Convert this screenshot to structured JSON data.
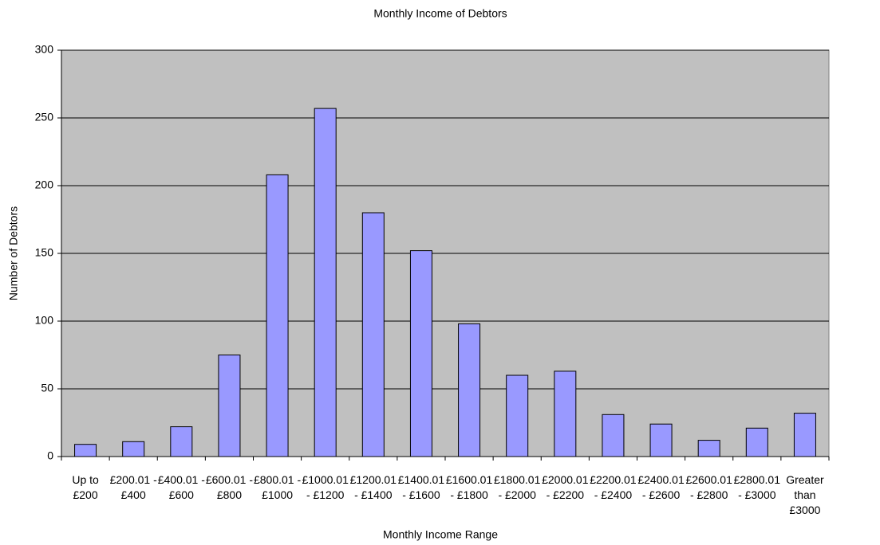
{
  "chart_data": {
    "type": "bar",
    "title": "Monthly Income of Debtors",
    "x_label": "Monthly Income Range",
    "y_label": "Number of Debtors",
    "categories": [
      "Up to £200",
      "£200.01 - £400",
      "£400.01 - £600",
      "£600.01 - £800",
      "£800.01 - £1000",
      "£1000.01 - £1200",
      "£1200.01 - £1400",
      "£1400.01 - £1600",
      "£1600.01 - £1800",
      "£1800.01 - £2000",
      "£2000.01 - £2200",
      "£2200.01 - £2400",
      "£2400.01 - £2600",
      "£2600.01 - £2800",
      "£2800.01 - £3000",
      "Greater than £3000"
    ],
    "values": [
      9,
      11,
      22,
      75,
      208,
      257,
      180,
      152,
      98,
      60,
      63,
      31,
      24,
      12,
      21,
      32
    ],
    "color": "#9999ff",
    "ylim": [
      0,
      300
    ],
    "yticks": [
      0,
      50,
      100,
      150,
      200,
      250,
      300
    ],
    "grid": true
  }
}
